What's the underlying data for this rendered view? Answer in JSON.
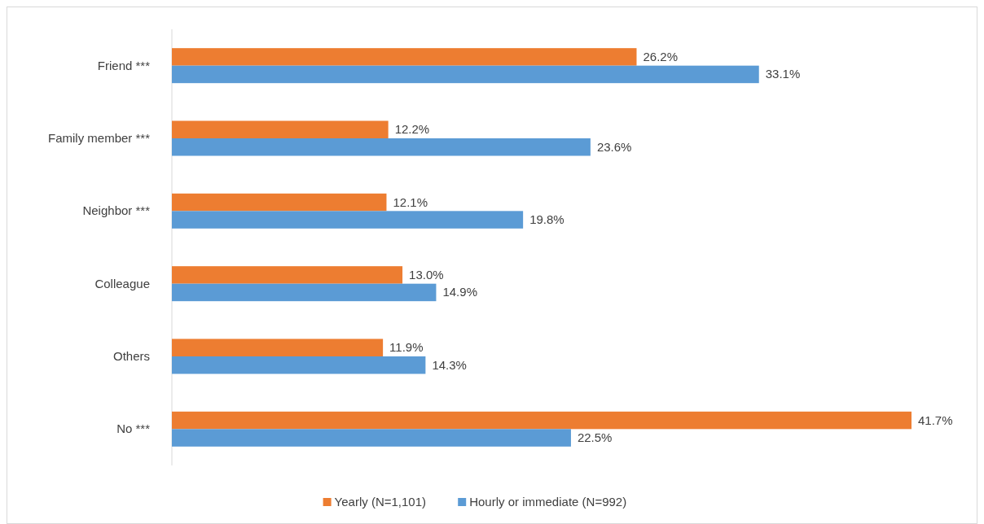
{
  "chart_data": {
    "type": "bar",
    "orientation": "horizontal",
    "categories": [
      "Friend ***",
      "Family member ***",
      "Neighbor ***",
      "Colleague",
      "Others",
      "No ***"
    ],
    "series": [
      {
        "name": "Yearly (N=1,101)",
        "color": "#ed7d31",
        "values": [
          26.2,
          12.2,
          12.1,
          13.0,
          11.9,
          41.7
        ],
        "value_labels": [
          "26.2%",
          "12.2%",
          "12.1%",
          "13.0%",
          "11.9%",
          "41.7%"
        ]
      },
      {
        "name": "Hourly or immediate (N=992)",
        "color": "#5b9bd5",
        "values": [
          33.1,
          23.6,
          19.8,
          14.9,
          14.3,
          22.5
        ],
        "value_labels": [
          "33.1%",
          "23.6%",
          "19.8%",
          "14.9%",
          "14.3%",
          "22.5%"
        ]
      }
    ],
    "legend": "bottom",
    "grid": false
  }
}
